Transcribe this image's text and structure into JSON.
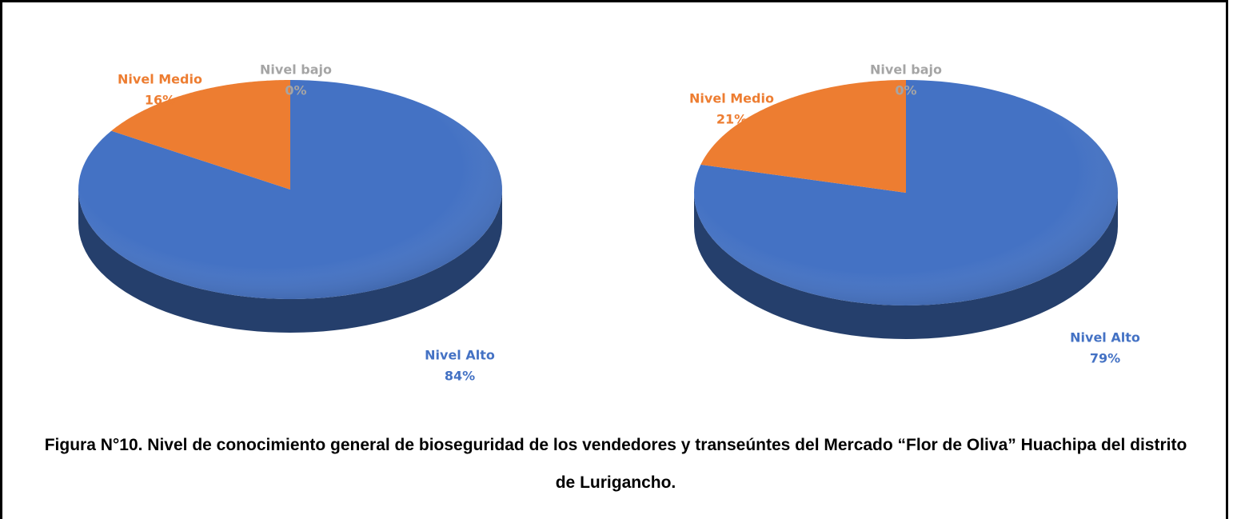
{
  "chart_data": [
    {
      "type": "pie",
      "categories": [
        "Nivel Alto",
        "Nivel Medio",
        "Nivel bajo"
      ],
      "values": [
        84,
        16,
        0
      ],
      "value_labels": [
        "84%",
        "16%",
        "0%"
      ],
      "colors": [
        "#4472c4",
        "#ed7d31",
        "#a5a5a5"
      ]
    },
    {
      "type": "pie",
      "categories": [
        "Nivel Alto",
        "Nivel Medio",
        "Nivel bajo"
      ],
      "values": [
        79,
        21,
        0
      ],
      "value_labels": [
        "79%",
        "21%",
        "0%"
      ],
      "colors": [
        "#4472c4",
        "#ed7d31",
        "#a5a5a5"
      ]
    }
  ],
  "caption": "Figura N°10. Nivel de conocimiento general de bioseguridad de los vendedores y transeúntes del Mercado “Flor de Oliva” Huachipa del distrito de Lurigancho."
}
